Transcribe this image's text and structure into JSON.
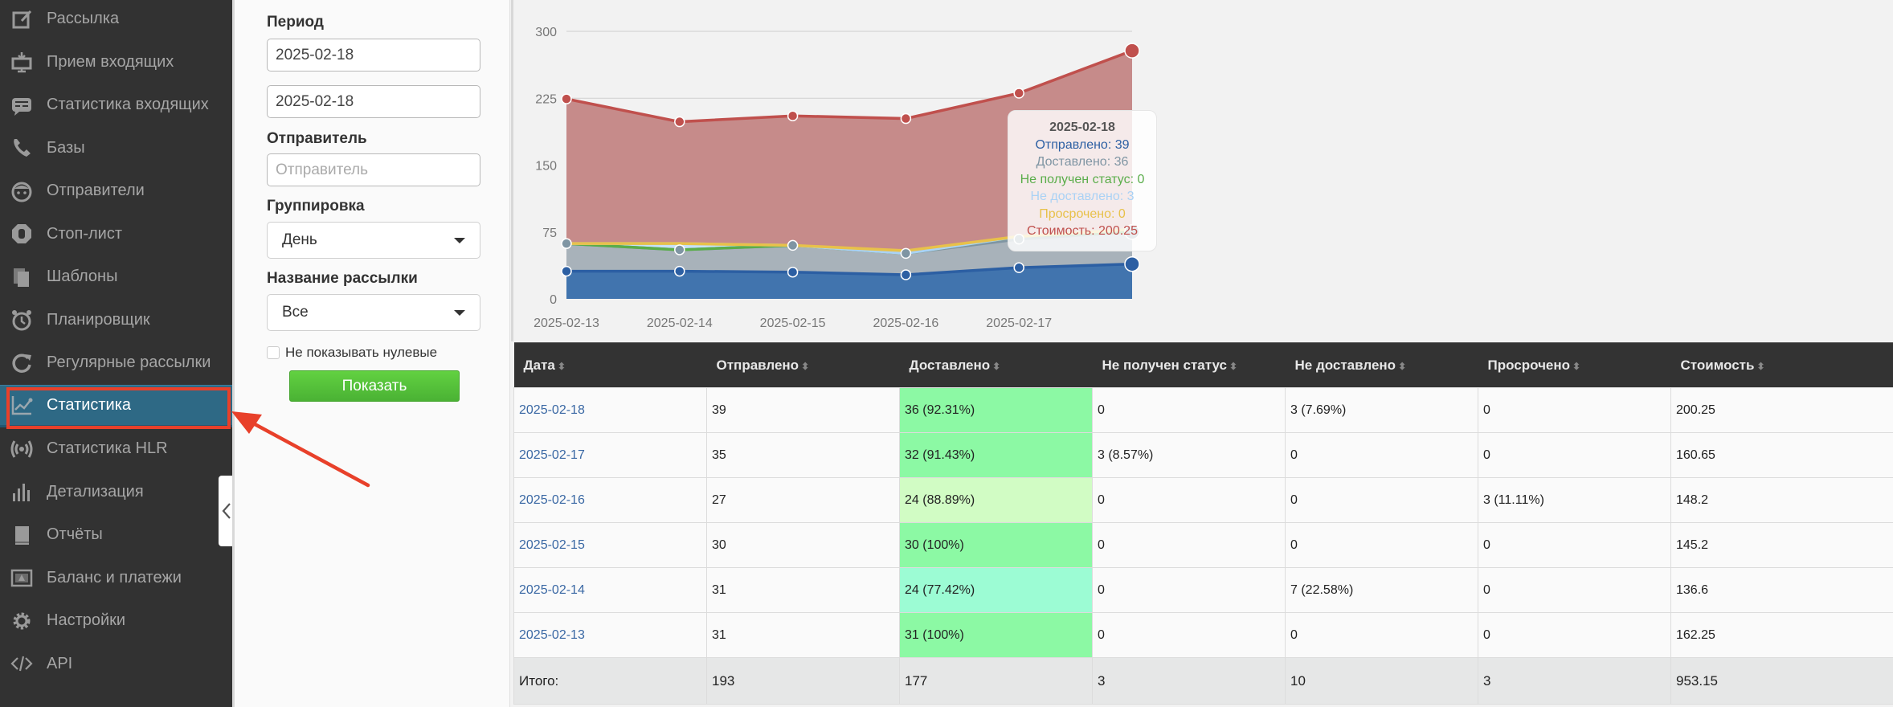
{
  "sidebar": {
    "items": [
      {
        "label": "Рассылка",
        "icon": "edit-icon"
      },
      {
        "label": "Прием входящих",
        "icon": "inbox-monitor-icon"
      },
      {
        "label": "Статистика входящих",
        "icon": "message-icon"
      },
      {
        "label": "Базы",
        "icon": "phone-icon"
      },
      {
        "label": "Отправители",
        "icon": "face-icon"
      },
      {
        "label": "Стоп-лист",
        "icon": "stop-hand-icon"
      },
      {
        "label": "Шаблоны",
        "icon": "copy-icon"
      },
      {
        "label": "Планировщик",
        "icon": "alarm-clock-icon"
      },
      {
        "label": "Регулярные рассылки",
        "icon": "refresh-icon"
      },
      {
        "label": "Статистика",
        "icon": "line-chart-icon",
        "active": true
      },
      {
        "label": "Статистика HLR",
        "icon": "broadcast-icon"
      },
      {
        "label": "Детализация",
        "icon": "bar-chart-icon"
      },
      {
        "label": "Отчёты",
        "icon": "book-icon"
      },
      {
        "label": "Баланс и платежи",
        "icon": "wallet-icon"
      },
      {
        "label": "Настройки",
        "icon": "gear-icon"
      },
      {
        "label": "API",
        "icon": "code-icon"
      }
    ],
    "collapse_icon": "chevron-left-icon"
  },
  "filters": {
    "period_label": "Период",
    "date_from": "2025-02-18",
    "date_to": "2025-02-18",
    "sender_label": "Отправитель",
    "sender_placeholder": "Отправитель",
    "grouping_label": "Группировка",
    "grouping_value": "День",
    "campaign_label": "Название рассылки",
    "campaign_value": "Все",
    "hide_zero_label": "Не показывать нулевые",
    "hide_zero_checked": false,
    "show_button": "Показать"
  },
  "colors": {
    "sent": "#2c5fa3",
    "delivered": "#7f95a3",
    "no_status": "#5aad4a",
    "not_delivered": "#aad2f5",
    "expired": "#e8c14a",
    "cost": "#c0504d",
    "active_nav": "#2e6985",
    "annotation": "#e8402a"
  },
  "chart_data": {
    "type": "area",
    "stacked": true,
    "x": [
      "2025-02-13",
      "2025-02-14",
      "2025-02-15",
      "2025-02-16",
      "2025-02-17",
      "2025-02-18"
    ],
    "x_tick_labels": [
      "2025-02-13",
      "2025-02-14",
      "2025-02-15",
      "2025-02-16",
      "2025-02-17"
    ],
    "y_ticks": [
      0,
      75,
      150,
      225,
      300
    ],
    "ylim": [
      0,
      300
    ],
    "grid": true,
    "series": [
      {
        "name": "Отправлено",
        "key": "sent",
        "values": [
          31,
          31,
          30,
          27,
          35,
          39
        ]
      },
      {
        "name": "Доставлено",
        "key": "delivered",
        "values": [
          31,
          24,
          30,
          24,
          32,
          36
        ]
      },
      {
        "name": "Не получен статус",
        "key": "no_status",
        "values": [
          0,
          0,
          0,
          0,
          3,
          0
        ]
      },
      {
        "name": "Не доставлено",
        "key": "not_delivered",
        "values": [
          0,
          7,
          0,
          0,
          0,
          3
        ]
      },
      {
        "name": "Просрочено",
        "key": "expired",
        "values": [
          0,
          0,
          0,
          3,
          0,
          0
        ]
      },
      {
        "name": "Стоимость",
        "key": "cost",
        "values": [
          162.25,
          136.6,
          145.2,
          148.2,
          160.65,
          200.25
        ]
      }
    ],
    "tooltip": {
      "title": "2025-02-18",
      "lines": [
        {
          "text": "Отправлено: 39",
          "key": "sent"
        },
        {
          "text": "Доставлено: 36",
          "key": "delivered"
        },
        {
          "text": "Не получен статус: 0",
          "key": "no_status"
        },
        {
          "text": "Не доставлено: 3",
          "key": "not_delivered"
        },
        {
          "text": "Просрочено: 0",
          "key": "expired"
        },
        {
          "text": "Стоимость: 200.25",
          "key": "cost"
        }
      ]
    }
  },
  "table": {
    "columns": [
      "Дата",
      "Отправлено",
      "Доставлено",
      "Не получен статус",
      "Не доставлено",
      "Просрочено",
      "Стоимость"
    ],
    "rows": [
      {
        "date": "2025-02-18",
        "sent": "39",
        "delivered": "36 (92.31%)",
        "delivered_bg": "#8cf9a4",
        "no_status": "0",
        "not_delivered": "3 (7.69%)",
        "expired": "0",
        "cost": "200.25"
      },
      {
        "date": "2025-02-17",
        "sent": "35",
        "delivered": "32 (91.43%)",
        "delivered_bg": "#8cf9a4",
        "no_status": "3 (8.57%)",
        "not_delivered": "0",
        "expired": "0",
        "cost": "160.65"
      },
      {
        "date": "2025-02-16",
        "sent": "27",
        "delivered": "24 (88.89%)",
        "delivered_bg": "#d1fcc4",
        "no_status": "0",
        "not_delivered": "0",
        "expired": "3 (11.11%)",
        "cost": "148.2"
      },
      {
        "date": "2025-02-15",
        "sent": "30",
        "delivered": "30 (100%)",
        "delivered_bg": "#8cf9a4",
        "no_status": "0",
        "not_delivered": "0",
        "expired": "0",
        "cost": "145.2"
      },
      {
        "date": "2025-02-14",
        "sent": "31",
        "delivered": "24 (77.42%)",
        "delivered_bg": "#9cfcd4",
        "no_status": "0",
        "not_delivered": "7 (22.58%)",
        "expired": "0",
        "cost": "136.6"
      },
      {
        "date": "2025-02-13",
        "sent": "31",
        "delivered": "31 (100%)",
        "delivered_bg": "#8cf9a4",
        "no_status": "0",
        "not_delivered": "0",
        "expired": "0",
        "cost": "162.25"
      }
    ],
    "total": {
      "label": "Итого:",
      "sent": "193",
      "delivered": "177",
      "no_status": "3",
      "not_delivered": "10",
      "expired": "3",
      "cost": "953.15"
    }
  }
}
